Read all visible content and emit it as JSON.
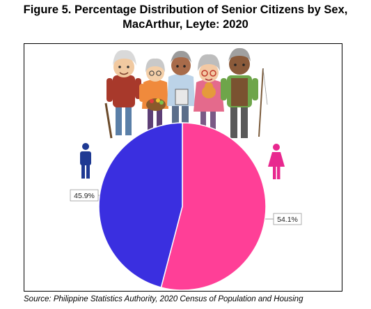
{
  "title_line1": "Figure 5. Percentage Distribution of Senior Citizens by Sex,",
  "title_line2": "MacArthur, Leyte: 2020",
  "source": "Source: Philippine Statistics Authority, 2020 Census of Population and Housing",
  "colors": {
    "male": "#3a2fe0",
    "female": "#ff3f97",
    "male_icon": "#1f3a93",
    "female_icon": "#e8288f"
  },
  "icons": [
    "male-person-icon",
    "female-person-icon",
    "senior-citizens-group-illustration"
  ],
  "chart_data": {
    "type": "pie",
    "categories": [
      "Male",
      "Female"
    ],
    "values": [
      45.9,
      54.1
    ],
    "data_labels": [
      "45.9%",
      "54.1%"
    ],
    "title": "Figure 5. Percentage Distribution of Senior Citizens by Sex, MacArthur, Leyte: 2020"
  }
}
